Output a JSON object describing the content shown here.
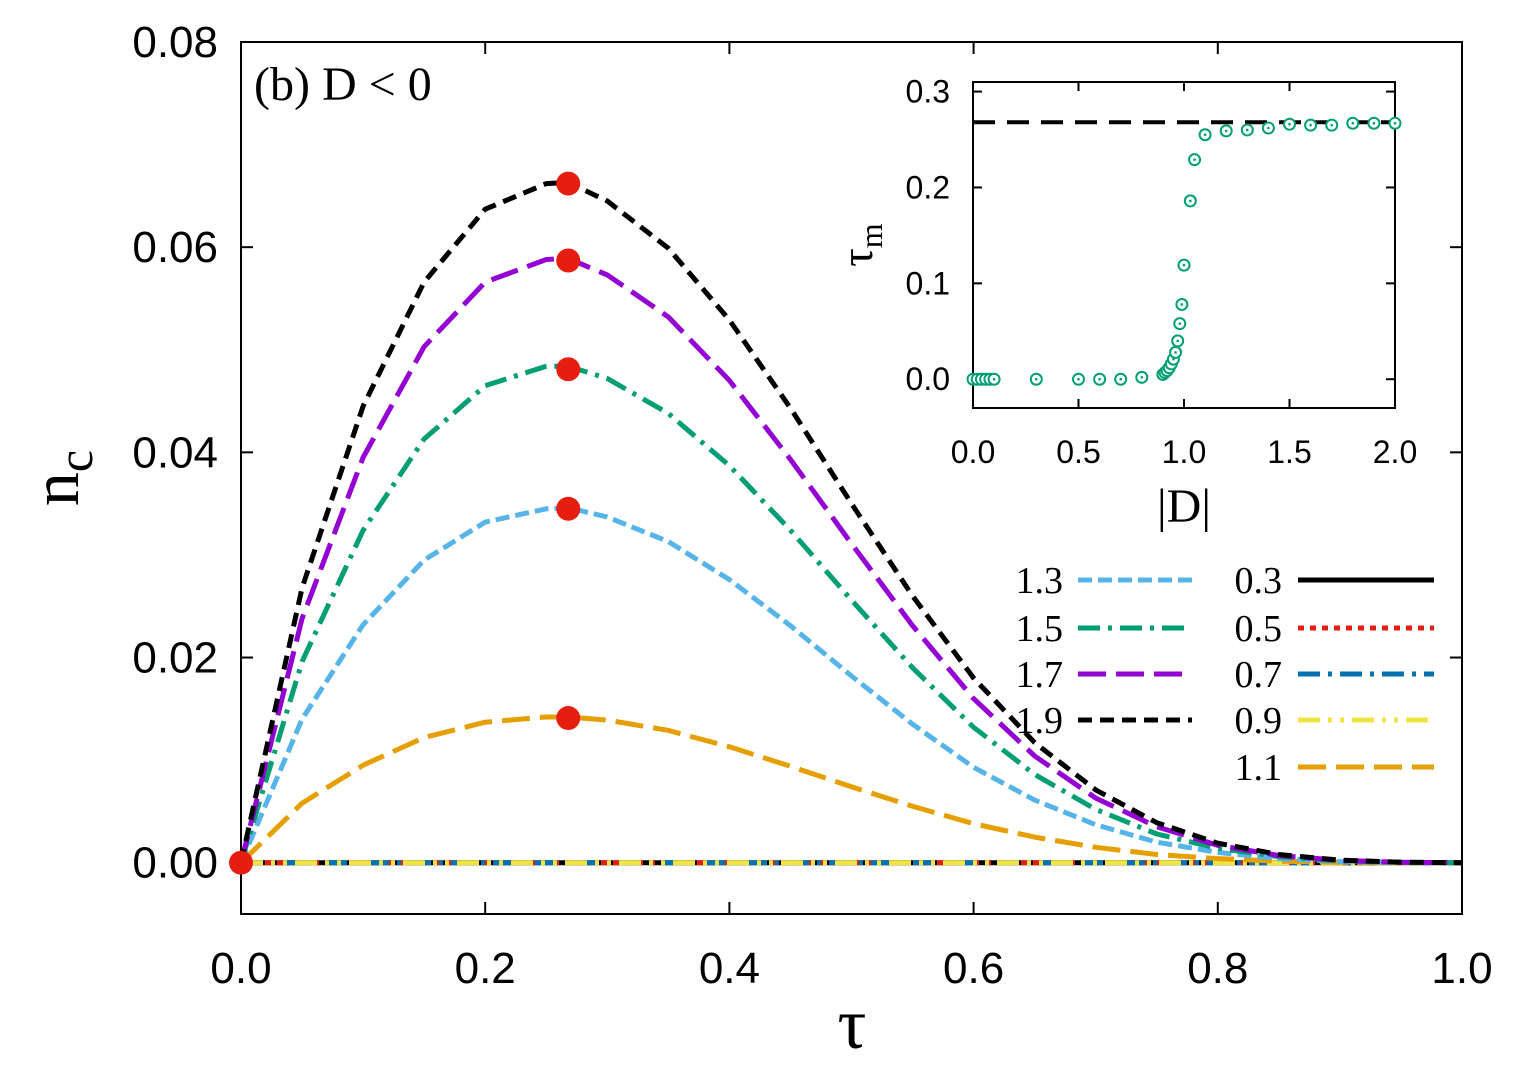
{
  "chart_data": [
    {
      "type": "line",
      "panel_label": "(b) D < 0",
      "xlabel": "τ",
      "ylabel_main": "n",
      "ylabel_sub": "c",
      "xlim": [
        0.0,
        1.0
      ],
      "ylim": [
        -0.005,
        0.08
      ],
      "xticks": [
        "0.0",
        "0.2",
        "0.4",
        "0.6",
        "0.8",
        "1.0"
      ],
      "xtick_values": [
        0.0,
        0.2,
        0.4,
        0.6,
        0.8,
        1.0
      ],
      "yticks": [
        "0.00",
        "0.02",
        "0.04",
        "0.06",
        "0.08"
      ],
      "ytick_values": [
        0.0,
        0.02,
        0.04,
        0.06,
        0.08
      ],
      "x": [
        0.0,
        0.05,
        0.1,
        0.15,
        0.2,
        0.25,
        0.268,
        0.3,
        0.35,
        0.4,
        0.45,
        0.5,
        0.55,
        0.6,
        0.65,
        0.7,
        0.75,
        0.8,
        0.85,
        0.9,
        0.95,
        1.0
      ],
      "series": [
        {
          "name": "0.3",
          "color": "#000000",
          "dash": "none",
          "values": [
            0,
            0,
            0,
            0,
            0,
            0,
            0,
            0,
            0,
            0,
            0,
            0,
            0,
            0,
            0,
            0,
            0,
            0,
            0,
            0,
            0,
            0
          ]
        },
        {
          "name": "0.5",
          "color": "#e51e10",
          "dash": "6,6",
          "values": [
            0,
            0,
            0,
            0,
            0,
            0,
            0,
            0,
            0,
            0,
            0,
            0,
            0,
            0,
            0,
            0,
            0,
            0,
            0,
            0,
            0,
            0
          ]
        },
        {
          "name": "0.7",
          "color": "#0072b2",
          "dash": "22,8,4,8",
          "values": [
            0,
            0,
            0,
            0,
            0,
            0,
            0,
            0,
            0,
            0,
            0,
            0,
            0,
            0,
            0,
            0,
            0,
            0,
            0,
            0,
            0,
            0
          ]
        },
        {
          "name": "0.9",
          "color": "#f0e442",
          "dash": "22,8,4,8,4,8",
          "values": [
            0,
            0,
            0,
            0,
            0,
            0,
            0,
            0,
            0,
            0,
            0,
            0,
            0,
            0,
            0,
            0,
            0,
            0,
            0,
            0,
            0,
            0
          ]
        },
        {
          "name": "1.1",
          "color": "#e69f00",
          "dash": "28,10",
          "values": [
            0,
            0.0058,
            0.0095,
            0.0122,
            0.0137,
            0.0142,
            0.0142,
            0.0139,
            0.0129,
            0.0113,
            0.0094,
            0.0074,
            0.0055,
            0.0038,
            0.0025,
            0.0015,
            0.0008,
            0.0004,
            0.00015,
            4e-05,
            0,
            0
          ]
        },
        {
          "name": "1.3",
          "color": "#56b4e9",
          "dash": "14,6",
          "values": [
            0,
            0.014,
            0.0232,
            0.0295,
            0.0332,
            0.0345,
            0.0346,
            0.0337,
            0.0313,
            0.0276,
            0.0231,
            0.0182,
            0.0135,
            0.0093,
            0.0061,
            0.0037,
            0.002,
            0.001,
            0.0004,
            0.00012,
            2e-05,
            0
          ]
        },
        {
          "name": "1.5",
          "color": "#009e73",
          "dash": "22,8,4,8",
          "values": [
            0,
            0.0196,
            0.0324,
            0.0413,
            0.0465,
            0.0484,
            0.0484,
            0.0472,
            0.0438,
            0.0387,
            0.0324,
            0.0256,
            0.019,
            0.0132,
            0.0086,
            0.0052,
            0.0028,
            0.0014,
            0.0006,
            0.00017,
            3e-05,
            0
          ]
        },
        {
          "name": "1.7",
          "color": "#9400d3",
          "dash": "28,10",
          "values": [
            0,
            0.0238,
            0.0395,
            0.0503,
            0.0566,
            0.0588,
            0.0589,
            0.0573,
            0.0532,
            0.047,
            0.0393,
            0.0311,
            0.0231,
            0.016,
            0.0104,
            0.0063,
            0.0035,
            0.0017,
            0.0007,
            0.00022,
            4e-05,
            0
          ]
        },
        {
          "name": "1.9",
          "color": "#000000",
          "dash": "14,8",
          "values": [
            0,
            0.0268,
            0.0445,
            0.0566,
            0.0637,
            0.0662,
            0.0663,
            0.0645,
            0.0599,
            0.0529,
            0.0443,
            0.035,
            0.026,
            0.018,
            0.0117,
            0.0071,
            0.0039,
            0.0019,
            0.0008,
            0.00025,
            5e-05,
            0
          ]
        }
      ],
      "maxima_markers": {
        "color": "#e51e10",
        "x": [
          0.268,
          0.268,
          0.268,
          0.268,
          0.268,
          0.0
        ],
        "y": [
          0.0662,
          0.0587,
          0.0481,
          0.0345,
          0.0141,
          0.0
        ]
      },
      "legend": {
        "placement": "bottom-right",
        "left_column": [
          "1.3",
          "1.5",
          "1.7",
          "1.9"
        ],
        "right_column": [
          "0.3",
          "0.5",
          "0.7",
          "0.9",
          "1.1"
        ]
      }
    },
    {
      "type": "scatter",
      "role": "inset",
      "placement": "top-right",
      "xlabel": "|D|",
      "ylabel_main": "τ",
      "ylabel_sub": "m",
      "xlim": [
        0.0,
        2.0
      ],
      "ylim": [
        -0.03,
        0.31
      ],
      "xticks": [
        "0.0",
        "0.5",
        "1.0",
        "1.5",
        "2.0"
      ],
      "xtick_values": [
        0.0,
        0.5,
        1.0,
        1.5,
        2.0
      ],
      "yticks": [
        "0.0",
        "0.1",
        "0.2",
        "0.3"
      ],
      "ytick_values": [
        0.0,
        0.1,
        0.2,
        0.3
      ],
      "marker_color": "#009e73",
      "x": [
        0.0,
        0.02,
        0.04,
        0.06,
        0.08,
        0.1,
        0.3,
        0.5,
        0.6,
        0.7,
        0.8,
        0.9,
        0.91,
        0.92,
        0.93,
        0.94,
        0.95,
        0.96,
        0.97,
        0.98,
        0.99,
        1.0,
        1.03,
        1.05,
        1.1,
        1.2,
        1.3,
        1.4,
        1.5,
        1.6,
        1.7,
        1.8,
        1.9,
        2.0
      ],
      "y": [
        0.0,
        0.0,
        0.0,
        0.0,
        0.0,
        0.0,
        0.0,
        0.0,
        0.0,
        0.0,
        0.002,
        0.005,
        0.007,
        0.009,
        0.012,
        0.016,
        0.021,
        0.028,
        0.04,
        0.058,
        0.078,
        0.119,
        0.186,
        0.229,
        0.255,
        0.259,
        0.26,
        0.262,
        0.266,
        0.265,
        0.265,
        0.267,
        0.267,
        0.267
      ],
      "reference_line": {
        "y": 0.268,
        "x_range": [
          0.0,
          2.0
        ],
        "color": "#000000"
      }
    }
  ]
}
